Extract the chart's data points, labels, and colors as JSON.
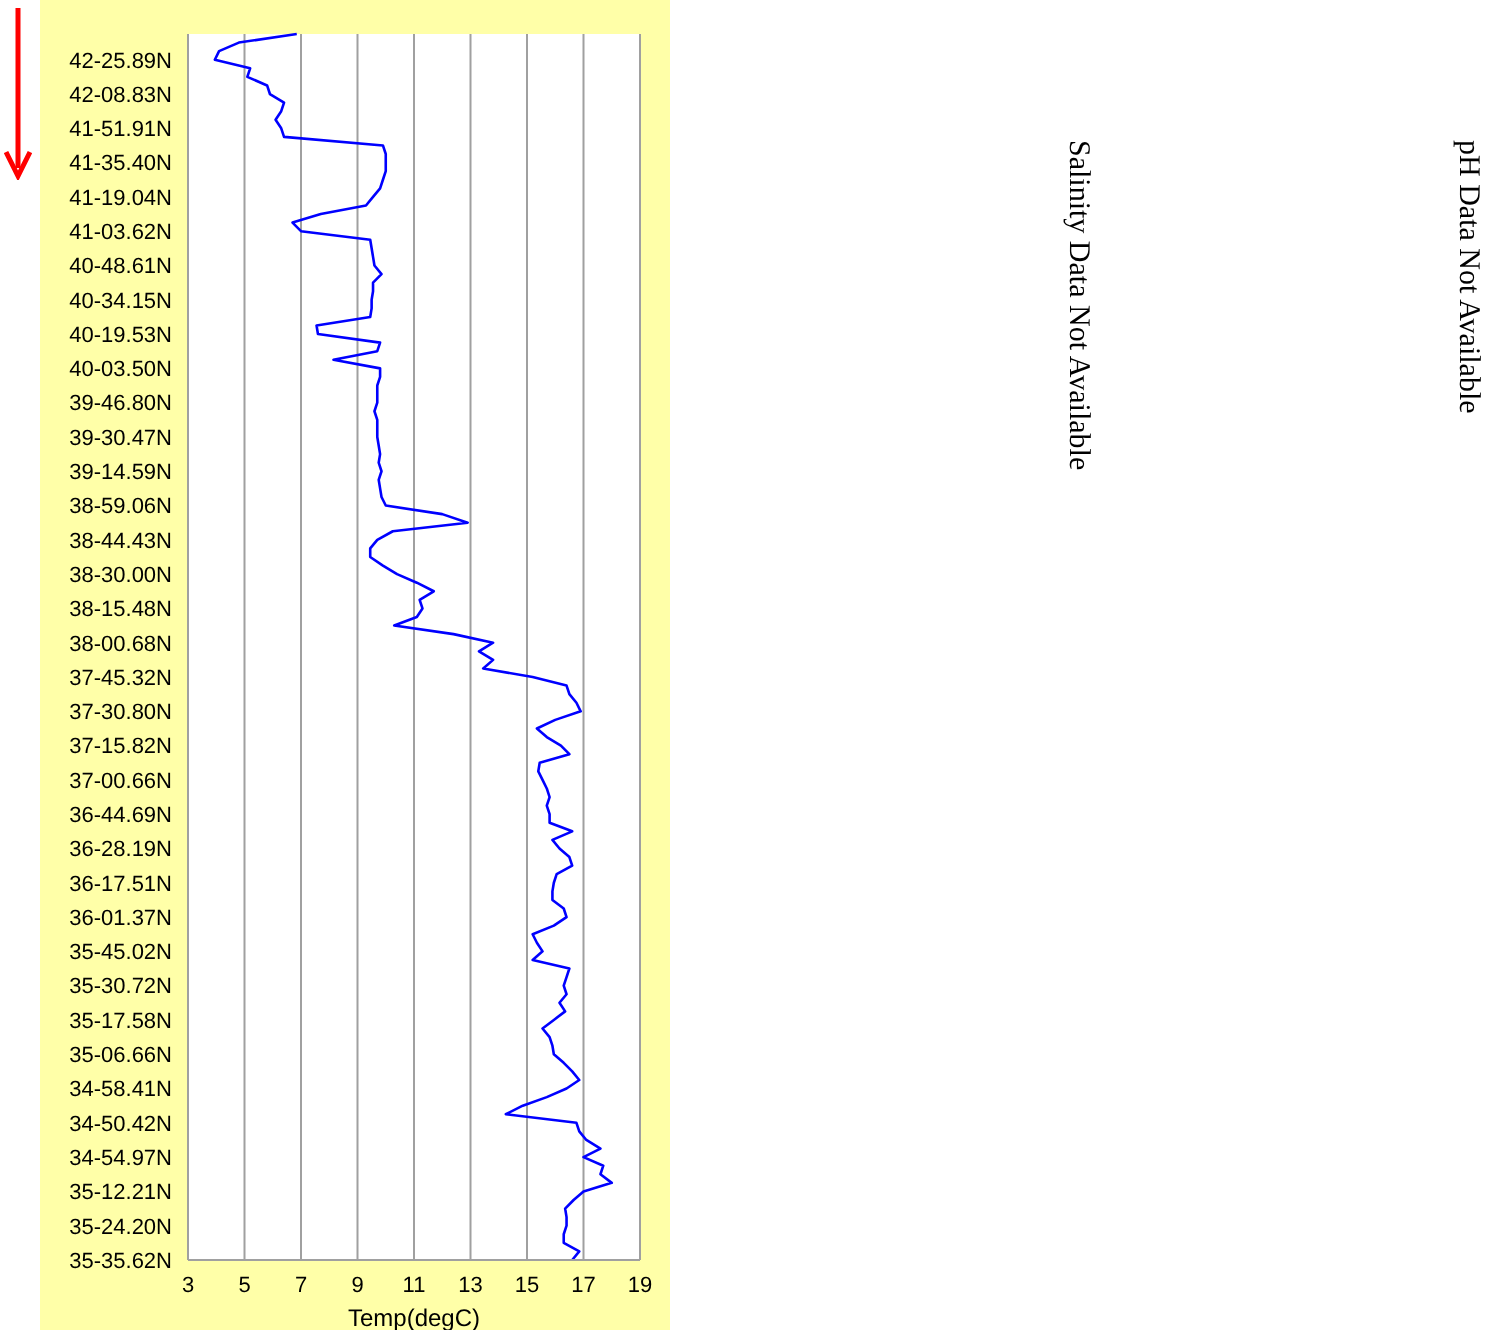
{
  "chart_data": {
    "type": "line",
    "orientation": "horizontal",
    "xlabel": "Temp(degC)",
    "categories": [
      null,
      null,
      null,
      "42-25.89N",
      null,
      null,
      null,
      "42-08.83N",
      null,
      null,
      null,
      "41-51.91N",
      null,
      null,
      null,
      "41-35.40N",
      null,
      null,
      null,
      "41-19.04N",
      null,
      null,
      null,
      "41-03.62N",
      null,
      null,
      null,
      "40-48.61N",
      null,
      null,
      null,
      "40-34.15N",
      null,
      null,
      null,
      "40-19.53N",
      null,
      null,
      null,
      "40-03.50N",
      null,
      null,
      null,
      "39-46.80N",
      null,
      null,
      null,
      "39-30.47N",
      null,
      null,
      null,
      "39-14.59N",
      null,
      null,
      null,
      "38-59.06N",
      null,
      null,
      null,
      "38-44.43N",
      null,
      null,
      null,
      "38-30.00N",
      null,
      null,
      null,
      "38-15.48N",
      null,
      null,
      null,
      "38-00.68N",
      null,
      null,
      null,
      "37-45.32N",
      null,
      null,
      null,
      "37-30.80N",
      null,
      null,
      null,
      "37-15.82N",
      null,
      null,
      null,
      "37-00.66N",
      null,
      null,
      null,
      "36-44.69N",
      null,
      null,
      null,
      "36-28.19N",
      null,
      null,
      null,
      "36-17.51N",
      null,
      null,
      null,
      "36-01.37N",
      null,
      null,
      null,
      "35-45.02N",
      null,
      null,
      null,
      "35-30.72N",
      null,
      null,
      null,
      "35-17.58N",
      null,
      null,
      null,
      "35-06.66N",
      null,
      null,
      null,
      "34-58.41N",
      null,
      null,
      null,
      "34-50.42N",
      null,
      null,
      null,
      "34-54.97N",
      null,
      null,
      null,
      "35-12.21N",
      null,
      null,
      null,
      "35-24.20N",
      null,
      null,
      null,
      "35-35.62N"
    ],
    "series": [
      {
        "color": "#0000ff",
        "values": [
          6.85,
          4.8,
          4.1,
          3.95,
          5.2,
          5.1,
          5.8,
          5.9,
          6.4,
          6.3,
          6.1,
          6.3,
          6.4,
          9.9,
          10.0,
          10.0,
          10.0,
          9.9,
          9.8,
          9.55,
          9.3,
          7.7,
          6.7,
          7.0,
          9.45,
          9.5,
          9.55,
          9.6,
          9.85,
          9.55,
          9.55,
          9.5,
          9.5,
          9.45,
          7.55,
          7.6,
          9.8,
          9.7,
          8.15,
          9.8,
          9.8,
          9.7,
          9.7,
          9.7,
          9.6,
          9.7,
          9.7,
          9.7,
          9.75,
          9.8,
          9.75,
          9.85,
          9.75,
          9.8,
          9.85,
          10.0,
          12.0,
          12.9,
          10.25,
          9.7,
          9.45,
          9.45,
          9.9,
          10.4,
          11.1,
          11.7,
          11.2,
          11.3,
          11.1,
          10.3,
          12.4,
          13.8,
          13.3,
          13.8,
          13.45,
          15.2,
          16.4,
          16.5,
          16.75,
          16.9,
          16.0,
          15.35,
          15.7,
          16.2,
          16.5,
          15.45,
          15.4,
          15.55,
          15.7,
          15.8,
          15.7,
          15.8,
          15.8,
          16.6,
          15.9,
          16.15,
          16.5,
          16.6,
          16.05,
          15.95,
          15.9,
          15.9,
          16.3,
          16.4,
          15.95,
          15.2,
          15.35,
          15.55,
          15.2,
          16.5,
          16.4,
          16.3,
          16.4,
          16.15,
          16.35,
          15.95,
          15.55,
          15.8,
          15.9,
          15.95,
          16.3,
          16.6,
          16.85,
          16.4,
          15.7,
          14.85,
          14.25,
          16.75,
          16.85,
          17.1,
          17.6,
          17.0,
          17.7,
          17.6,
          18.0,
          17.0,
          16.65,
          16.35,
          16.4,
          16.4,
          16.3,
          16.3,
          16.85,
          16.6
        ]
      }
    ],
    "xlim": [
      3,
      19
    ],
    "xticks": [
      3,
      5,
      7,
      9,
      11,
      13,
      15,
      17,
      19
    ],
    "grid": "x",
    "marker": "none",
    "line_style": "solid",
    "annotations": [
      "Salinity Data Not Available",
      "pH Data Not Available"
    ]
  }
}
